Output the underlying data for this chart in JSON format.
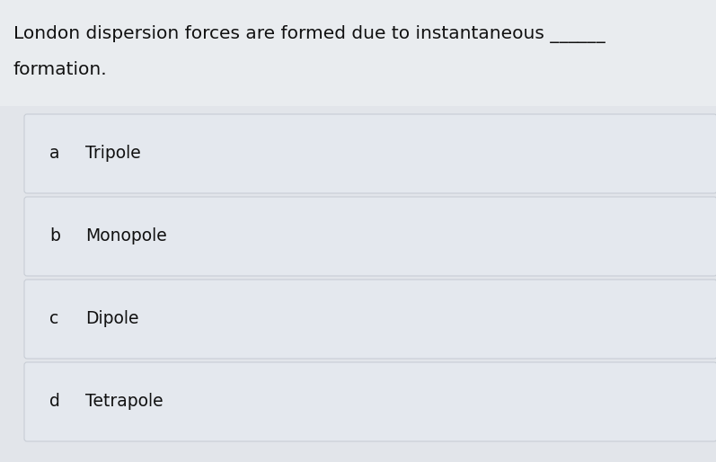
{
  "question_line1": "London dispersion forces are formed due to instantaneous ———",
  "question_line2": "formation.",
  "options": [
    {
      "label": "a",
      "text": "Tripole"
    },
    {
      "label": "b",
      "text": "Monopole"
    },
    {
      "label": "c",
      "text": "Dipole"
    },
    {
      "label": "d",
      "text": "Tetrapole"
    }
  ],
  "bg_color": "#e8eaed",
  "option_box_color": "#e4e8ee",
  "option_box_edge_color": "#c8cdd5",
  "text_color": "#111111",
  "question_fontsize": 14.5,
  "option_label_fontsize": 13.5,
  "option_text_fontsize": 13.5,
  "fig_width": 7.97,
  "fig_height": 5.14,
  "fig_bg_color": "#e2e5ea"
}
